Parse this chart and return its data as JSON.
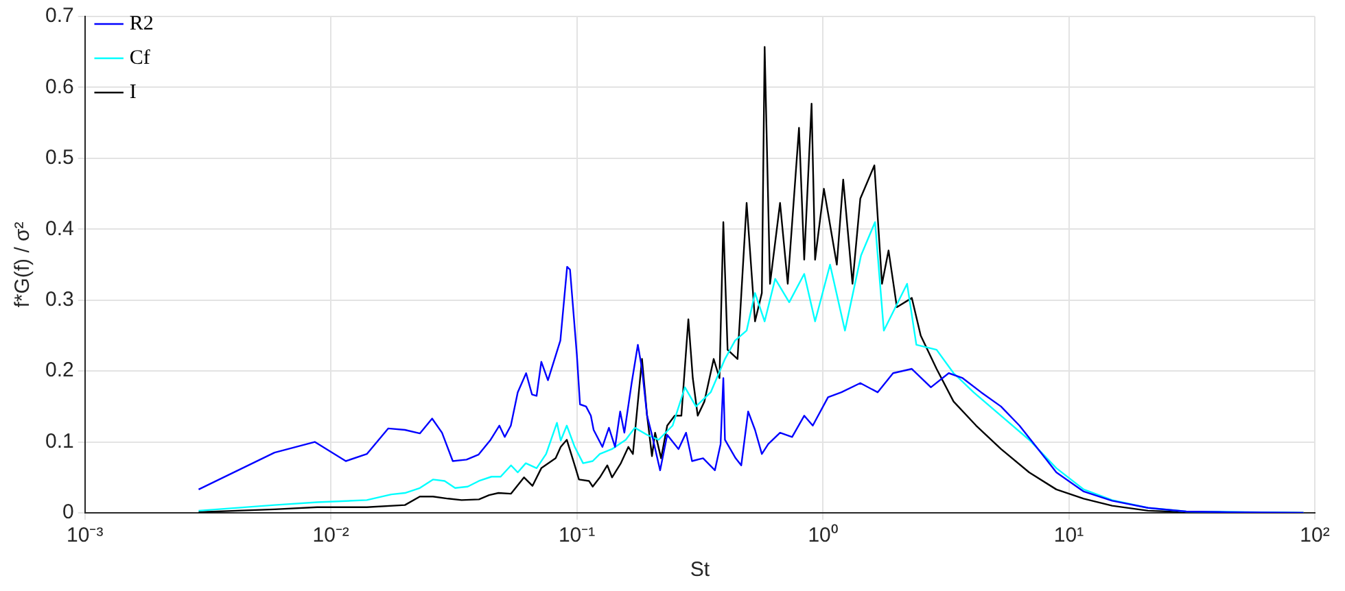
{
  "chart_data": {
    "type": "line",
    "xlabel": "St",
    "ylabel": "f*G(f) / σ²",
    "log": "x",
    "grid": true,
    "legend": "top left",
    "marker": "none",
    "line_style": "solid",
    "xlim": [
      0.001,
      100
    ],
    "xticks": [
      {
        "value": 0.001,
        "label": "10⁻³"
      },
      {
        "value": 0.01,
        "label": "10⁻²"
      },
      {
        "value": 0.1,
        "label": "10⁻¹"
      },
      {
        "value": 1,
        "label": "10⁰"
      },
      {
        "value": 10,
        "label": "10¹"
      },
      {
        "value": 100,
        "label": "10²"
      }
    ],
    "ylim": [
      0,
      0.7
    ],
    "yticks": [
      0,
      0.1,
      0.2,
      0.3,
      0.4,
      0.5,
      0.6,
      0.7
    ],
    "series": [
      {
        "name": "R2",
        "color": "#0000ff",
        "x": [
          0.0029,
          0.0059,
          0.0086,
          0.0115,
          0.014,
          0.0171,
          0.02,
          0.023,
          0.0258,
          0.0283,
          0.0313,
          0.0356,
          0.0398,
          0.0446,
          0.0484,
          0.0509,
          0.0539,
          0.0575,
          0.0622,
          0.0657,
          0.0686,
          0.0717,
          0.0763,
          0.0857,
          0.0913,
          0.0938,
          0.1,
          0.103,
          0.109,
          0.114,
          0.117,
          0.127,
          0.135,
          0.143,
          0.15,
          0.156,
          0.167,
          0.177,
          0.184,
          0.193,
          0.202,
          0.218,
          0.233,
          0.259,
          0.278,
          0.294,
          0.326,
          0.364,
          0.384,
          0.394,
          0.4,
          0.442,
          0.466,
          0.497,
          0.53,
          0.565,
          0.6,
          0.67,
          0.75,
          0.84,
          0.91,
          1.05,
          1.19,
          1.42,
          1.67,
          1.93,
          2.3,
          2.75,
          3.25,
          3.7,
          4.4,
          5.3,
          6.3,
          7.5,
          8.9,
          11.5,
          15,
          21,
          30,
          44,
          90
        ],
        "values": [
          0.033,
          0.085,
          0.1,
          0.073,
          0.083,
          0.119,
          0.117,
          0.112,
          0.133,
          0.113,
          0.073,
          0.075,
          0.082,
          0.103,
          0.123,
          0.107,
          0.123,
          0.17,
          0.197,
          0.167,
          0.165,
          0.213,
          0.187,
          0.243,
          0.347,
          0.343,
          0.223,
          0.153,
          0.15,
          0.137,
          0.117,
          0.093,
          0.12,
          0.093,
          0.143,
          0.113,
          0.183,
          0.237,
          0.203,
          0.137,
          0.11,
          0.06,
          0.11,
          0.09,
          0.113,
          0.073,
          0.077,
          0.06,
          0.097,
          0.19,
          0.103,
          0.077,
          0.067,
          0.143,
          0.117,
          0.083,
          0.097,
          0.113,
          0.107,
          0.137,
          0.123,
          0.163,
          0.17,
          0.183,
          0.17,
          0.197,
          0.203,
          0.177,
          0.197,
          0.19,
          0.17,
          0.15,
          0.123,
          0.09,
          0.057,
          0.03,
          0.017,
          0.007,
          0.002,
          0.001,
          0
        ]
      },
      {
        "name": "Cf",
        "color": "#00ffff",
        "x": [
          0.0029,
          0.0059,
          0.0088,
          0.014,
          0.0176,
          0.02,
          0.023,
          0.026,
          0.029,
          0.032,
          0.036,
          0.04,
          0.045,
          0.049,
          0.054,
          0.0575,
          0.062,
          0.0686,
          0.075,
          0.083,
          0.086,
          0.091,
          0.098,
          0.106,
          0.116,
          0.124,
          0.139,
          0.158,
          0.172,
          0.193,
          0.215,
          0.245,
          0.275,
          0.305,
          0.35,
          0.4,
          0.44,
          0.49,
          0.53,
          0.58,
          0.64,
          0.73,
          0.84,
          0.93,
          1.07,
          1.23,
          1.43,
          1.63,
          1.77,
          2.2,
          2.4,
          2.9,
          3.4,
          4.1,
          5.3,
          6.9,
          8.9,
          11.5,
          15,
          21,
          30,
          90
        ],
        "values": [
          0.003,
          0.011,
          0.015,
          0.018,
          0.026,
          0.028,
          0.035,
          0.047,
          0.045,
          0.035,
          0.037,
          0.045,
          0.051,
          0.051,
          0.067,
          0.057,
          0.07,
          0.063,
          0.083,
          0.127,
          0.102,
          0.123,
          0.093,
          0.07,
          0.073,
          0.083,
          0.09,
          0.103,
          0.12,
          0.11,
          0.103,
          0.123,
          0.177,
          0.15,
          0.17,
          0.217,
          0.243,
          0.257,
          0.31,
          0.27,
          0.33,
          0.297,
          0.337,
          0.27,
          0.35,
          0.257,
          0.363,
          0.41,
          0.257,
          0.323,
          0.237,
          0.23,
          0.197,
          0.17,
          0.137,
          0.103,
          0.063,
          0.033,
          0.018,
          0.007,
          0.002,
          0
        ]
      },
      {
        "name": "I",
        "color": "#000000",
        "x": [
          0.0029,
          0.0059,
          0.0088,
          0.014,
          0.02,
          0.023,
          0.026,
          0.03,
          0.034,
          0.04,
          0.044,
          0.048,
          0.054,
          0.061,
          0.066,
          0.0717,
          0.082,
          0.086,
          0.091,
          0.098,
          0.102,
          0.112,
          0.116,
          0.124,
          0.133,
          0.139,
          0.151,
          0.162,
          0.169,
          0.184,
          0.193,
          0.202,
          0.208,
          0.22,
          0.233,
          0.25,
          0.266,
          0.284,
          0.296,
          0.31,
          0.33,
          0.36,
          0.38,
          0.394,
          0.41,
          0.45,
          0.49,
          0.53,
          0.565,
          0.58,
          0.61,
          0.67,
          0.72,
          0.8,
          0.84,
          0.9,
          0.93,
          1.01,
          1.14,
          1.21,
          1.32,
          1.42,
          1.62,
          1.74,
          1.85,
          2,
          2.3,
          2.5,
          2.9,
          3.4,
          4.2,
          5.3,
          6.9,
          8.9,
          11.5,
          15,
          21,
          30,
          90
        ],
        "values": [
          0.001,
          0.005,
          0.008,
          0.008,
          0.011,
          0.023,
          0.023,
          0.02,
          0.018,
          0.019,
          0.025,
          0.028,
          0.027,
          0.05,
          0.038,
          0.063,
          0.077,
          0.093,
          0.103,
          0.067,
          0.047,
          0.045,
          0.037,
          0.05,
          0.067,
          0.05,
          0.07,
          0.093,
          0.083,
          0.217,
          0.137,
          0.08,
          0.113,
          0.077,
          0.123,
          0.137,
          0.137,
          0.273,
          0.19,
          0.137,
          0.157,
          0.217,
          0.19,
          0.41,
          0.23,
          0.217,
          0.437,
          0.27,
          0.31,
          0.657,
          0.323,
          0.437,
          0.323,
          0.543,
          0.357,
          0.577,
          0.357,
          0.457,
          0.35,
          0.47,
          0.323,
          0.443,
          0.49,
          0.323,
          0.37,
          0.29,
          0.303,
          0.25,
          0.203,
          0.157,
          0.123,
          0.09,
          0.057,
          0.033,
          0.02,
          0.01,
          0.003,
          0.001,
          0
        ]
      }
    ]
  }
}
